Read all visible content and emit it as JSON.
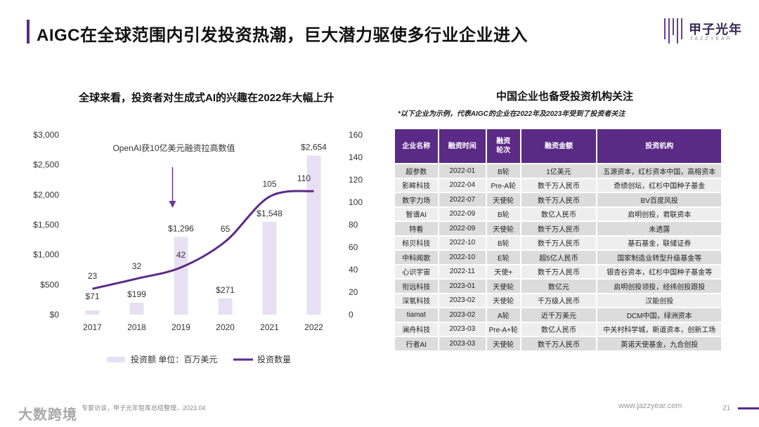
{
  "header": {
    "title": "AIGC在全球范围内引发投资热潮，巨大潜力驱使多行业企业进入",
    "logo_text": "甲子光年",
    "logo_sub": "JAZZYEAR"
  },
  "left_panel": {
    "title": "全球来看，投资者对生成式AI的兴趣在2022年大幅上升"
  },
  "chart_data": {
    "type": "bar+line",
    "categories": [
      "2017",
      "2018",
      "2019",
      "2020",
      "2021",
      "2022"
    ],
    "series": [
      {
        "name": "投资额 单位：百万美元",
        "kind": "bar",
        "axis": "left",
        "values": [
          71,
          199,
          1296,
          271,
          1548,
          2654
        ],
        "labels": [
          "$71",
          "$199",
          "$1,296",
          "$271",
          "$1,548",
          "$2,654"
        ],
        "color": "#e8e0f2"
      },
      {
        "name": "投资数量",
        "kind": "line",
        "axis": "right",
        "values": [
          23,
          32,
          42,
          65,
          105,
          110
        ],
        "labels": [
          "23",
          "32",
          "42",
          "65",
          "105",
          "110"
        ],
        "color": "#5b2a86"
      }
    ],
    "y_left": {
      "ticks": [
        "$0",
        "$500",
        "$1,000",
        "$1,500",
        "$2,000",
        "$2,500",
        "$3,000"
      ],
      "max": 3000
    },
    "y_right": {
      "ticks": [
        "0",
        "20",
        "40",
        "60",
        "80",
        "100",
        "120",
        "140",
        "160"
      ],
      "max": 160
    },
    "annotation": {
      "text": "OpenAI获10亿美元融资拉高数值",
      "category": "2019"
    },
    "legend": "bottom"
  },
  "right_panel": {
    "title": "中国企业也备受投资机构关注",
    "note": "*以下企业为示例，代表AIGC的企业在2022年及2023年受到了投资者关注",
    "columns": [
      "企业名称",
      "融资时间",
      "融资\n轮次",
      "融资金额",
      "投资机构"
    ],
    "rows": [
      [
        "超参数",
        "2022-01",
        "B轮",
        "1亿美元",
        "五源资本，红杉资本中国，高榕资本"
      ],
      [
        "影眸科技",
        "2022-04",
        "Pre-A轮",
        "数千万人民币",
        "奇绩创坛，红杉中国种子基金"
      ],
      [
        "数字力场",
        "2022-07",
        "天使轮",
        "数千万人民币",
        "BV百度风投"
      ],
      [
        "智谱AI",
        "2022-09",
        "B轮",
        "数亿人民币",
        "启明创投，君联资本"
      ],
      [
        "特看",
        "2022-09",
        "天使轮",
        "数千万人民币",
        "未透露"
      ],
      [
        "标贝科技",
        "2022-10",
        "B轮",
        "数千万人民币",
        "基石基金，联储证券"
      ],
      [
        "中科闻歌",
        "2022-10",
        "E轮",
        "超5亿人民币",
        "国家制造业转型升级基金等"
      ],
      [
        "心识宇宙",
        "2022-11",
        "天使+",
        "数千万人民币",
        "银杏谷资本，红杉中国种子基金等"
      ],
      [
        "衔远科技",
        "2023-01",
        "天使轮",
        "数亿元",
        "启明创投领投，经纬创投跟投"
      ],
      [
        "深氧科技",
        "2023-02",
        "天使轮",
        "千万级人民币",
        "汉能创投"
      ],
      [
        "tiamat",
        "2023-02",
        "A轮",
        "近千万美元",
        "DCM中国，绿洲资本"
      ],
      [
        "澜舟科技",
        "2023-03",
        "Pre-A+轮",
        "数亿人民币",
        "中关村科学城，斯道资本，创新工场"
      ],
      [
        "行者AI",
        "2023-03",
        "天使轮",
        "数千万人民币",
        "英诺天使基金，九合创投"
      ]
    ]
  },
  "footer": {
    "source": "专家访谈，甲子光年智库总结整理，2023.04",
    "brand": "大数跨境",
    "url": "www.jazzyear.com",
    "page": "21"
  }
}
